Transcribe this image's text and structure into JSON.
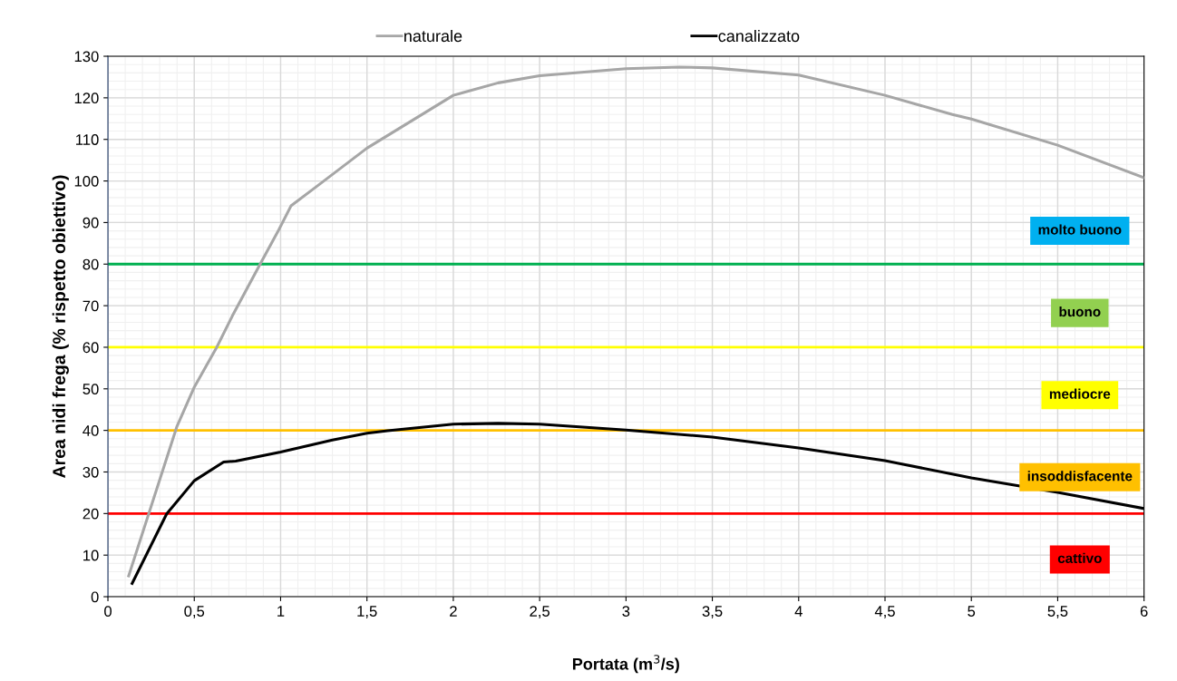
{
  "chart_data": {
    "type": "line",
    "xlabel": "Portata (m$^{3}$/s)",
    "ylabel": "Area nidi frega (% rispetto obiettivo)",
    "series": [
      {
        "name": "naturale",
        "color": "#a6a6a6",
        "x": [
          0.12,
          0.4,
          0.5,
          0.63,
          0.72,
          0.88,
          0.99,
          1.06,
          1.2,
          1.5,
          2.0,
          2.26,
          2.5,
          3.0,
          3.31,
          3.5,
          4.0,
          4.5,
          4.89,
          5.0,
          5.5,
          6.0
        ],
        "values": [
          5,
          41,
          50.4,
          60,
          67.5,
          79.9,
          88.3,
          94,
          98.4,
          107.9,
          120.6,
          123.6,
          125.3,
          127,
          127.4,
          127.2,
          125.5,
          120.6,
          116,
          114.9,
          108.6,
          100.8
        ]
      },
      {
        "name": "canalizzato",
        "color": "#000000",
        "x": [
          0.14,
          0.34,
          0.5,
          0.67,
          0.74,
          1.0,
          1.3,
          1.5,
          1.62,
          2.0,
          2.26,
          2.5,
          3.0,
          3.5,
          4.0,
          4.5,
          5.0,
          5.5,
          6.0
        ],
        "values": [
          3.2,
          19.9,
          27.9,
          32.4,
          32.6,
          34.8,
          37.7,
          39.3,
          39.9,
          41.5,
          41.7,
          41.5,
          40.1,
          38.4,
          35.8,
          32.7,
          28.6,
          25.1,
          21.2
        ]
      }
    ],
    "xlim": [
      0,
      6
    ],
    "ylim": [
      0,
      130
    ],
    "xticks": [
      0,
      {
        "value": 0.5,
        "label": "0,5"
      },
      1,
      {
        "value": 1.5,
        "label": "1,5"
      },
      2,
      {
        "value": 2.5,
        "label": "2,5"
      },
      3,
      {
        "value": 3.5,
        "label": "3,5"
      },
      4,
      {
        "value": 4.5,
        "label": "4,5"
      },
      5,
      {
        "value": 5.5,
        "label": "5,5"
      },
      6
    ],
    "yticks": [
      0,
      10,
      20,
      30,
      40,
      50,
      60,
      70,
      80,
      90,
      100,
      110,
      120,
      130
    ],
    "ref_lines": [
      {
        "axis": "y",
        "value": 80,
        "color": "#00b050"
      },
      {
        "axis": "y",
        "value": 60,
        "color": "#ffff00"
      },
      {
        "axis": "y",
        "value": 40,
        "color": "#ffc000"
      },
      {
        "axis": "y",
        "value": 20,
        "color": "#ff0000"
      }
    ],
    "annotations": [
      "molto buono",
      "buono",
      "mediocre",
      "insoddisfacente",
      "cattivo"
    ],
    "grid": true,
    "legend": "top",
    "marker": "none",
    "line_style": "solid"
  }
}
